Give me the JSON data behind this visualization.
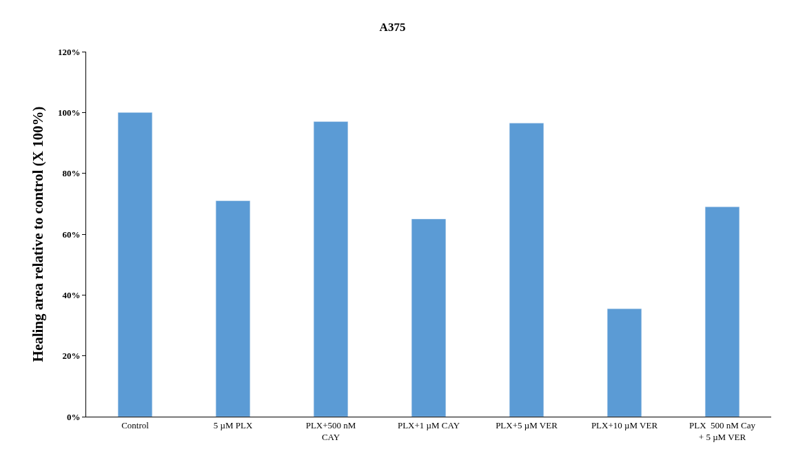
{
  "chart_data": {
    "type": "bar",
    "title": "A375",
    "ylabel": "Healing area relative to control (X 100%)",
    "categories": [
      "Control",
      "5 µM PLX",
      "PLX+500 nM\nCAY",
      "PLX+1 µM CAY",
      "PLX+5 µM VER",
      "PLX+10 µM VER",
      "PLX  500 nM Cay\n+ 5 µM VER"
    ],
    "values": [
      100,
      71,
      97,
      65,
      96.5,
      35.5,
      69
    ],
    "color": "#5b9bd5",
    "ylim": [
      0,
      120
    ],
    "yticks": [
      {
        "value": 0,
        "label": "0%"
      },
      {
        "value": 20,
        "label": "20%"
      },
      {
        "value": 40,
        "label": "40%"
      },
      {
        "value": 60,
        "label": "60%"
      },
      {
        "value": 80,
        "label": "80%"
      },
      {
        "value": 100,
        "label": "100%"
      },
      {
        "value": 120,
        "label": "120%"
      }
    ],
    "grid": false,
    "legend": false
  }
}
